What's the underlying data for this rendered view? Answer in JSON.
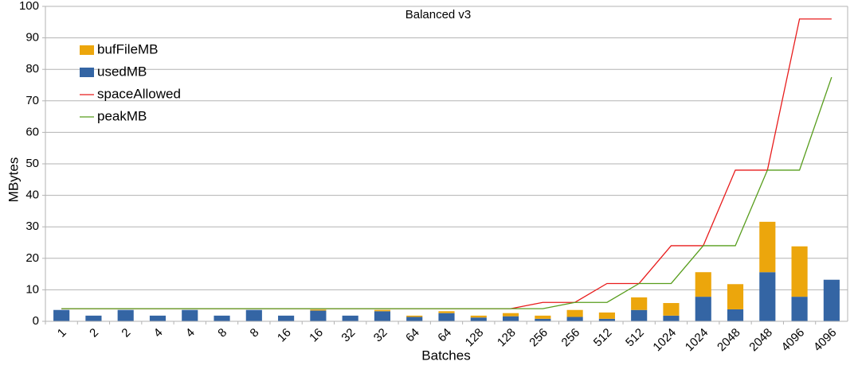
{
  "chart_data": {
    "type": "bar",
    "title": "Balanced v3",
    "stacked": true,
    "x_label": "Batches",
    "y_label": "MBytes",
    "categories": [
      "1",
      "2",
      "2",
      "4",
      "4",
      "8",
      "8",
      "16",
      "16",
      "32",
      "32",
      "64",
      "64",
      "128",
      "128",
      "256",
      "256",
      "512",
      "512",
      "1024",
      "1024",
      "2048",
      "2048",
      "4096",
      "4096"
    ],
    "series": [
      {
        "name": "bufFileMB",
        "type": "bar",
        "color": "#eca60c",
        "values": [
          0,
          0,
          0,
          0,
          0,
          0,
          0,
          0,
          0.3,
          0,
          0.4,
          0.4,
          0.6,
          0.6,
          1.0,
          1.0,
          2.2,
          2.0,
          4.0,
          4.0,
          7.8,
          8.0,
          16.0,
          16.0,
          0
        ]
      },
      {
        "name": "usedMB",
        "type": "bar",
        "color": "#3465a4",
        "values": [
          3.6,
          1.8,
          3.6,
          1.8,
          3.6,
          1.8,
          3.6,
          1.8,
          3.4,
          1.8,
          3.2,
          1.4,
          2.6,
          1.2,
          1.6,
          0.8,
          1.4,
          0.8,
          3.6,
          1.8,
          7.8,
          3.8,
          15.6,
          7.8,
          13.2
        ]
      },
      {
        "name": "spaceAllowed",
        "type": "line",
        "color": "#e81c1c",
        "values": [
          4,
          4,
          4,
          4,
          4,
          4,
          4,
          4,
          4,
          4,
          4,
          4,
          4,
          4,
          4,
          6,
          6,
          12,
          12,
          24,
          24,
          48,
          48,
          96,
          96
        ]
      },
      {
        "name": "peakMB",
        "type": "line",
        "color": "#579d1c",
        "values": [
          4,
          4,
          4,
          4,
          4,
          4,
          4,
          4,
          4,
          4,
          4,
          4,
          4,
          4,
          4,
          4,
          6,
          6,
          12,
          12,
          24,
          24,
          48,
          48,
          77.5
        ]
      }
    ],
    "ylim": [
      0,
      100
    ],
    "yticks": [
      0,
      10,
      20,
      30,
      40,
      50,
      60,
      70,
      80,
      90,
      100
    ],
    "grid": true,
    "legend": "top-left"
  }
}
